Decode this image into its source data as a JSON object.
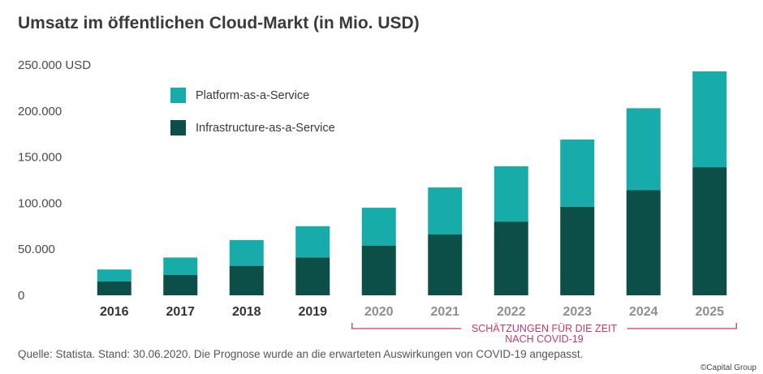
{
  "chart_data": {
    "type": "bar",
    "stacked": true,
    "title": "Umsatz im öffentlichen Cloud-Markt (in Mio. USD)",
    "ylim": [
      0,
      250000
    ],
    "y_ticks": [
      0,
      50000,
      100000,
      150000,
      200000,
      250000
    ],
    "y_tick_labels": [
      "0",
      "50.000",
      "100.000",
      "150.000",
      "200.000",
      "250.000 USD"
    ],
    "categories": [
      "2016",
      "2017",
      "2018",
      "2019",
      "2020",
      "2021",
      "2022",
      "2023",
      "2024",
      "2025"
    ],
    "series": [
      {
        "name": "Infrastructure-as-a-Service",
        "color": "#0b4f48",
        "values": [
          15000,
          22000,
          32000,
          41000,
          54000,
          66000,
          80000,
          96000,
          114000,
          139000
        ]
      },
      {
        "name": "Platform-as-a-Service",
        "color": "#17aba9",
        "values": [
          13000,
          19000,
          28000,
          34000,
          41000,
          51000,
          60000,
          73000,
          89000,
          104000
        ]
      }
    ],
    "legend_position": "top-left",
    "grid": false,
    "x_label_colors": {
      "actual": "#333333",
      "estimate": "#8f8f8f"
    },
    "estimate_start_index": 4,
    "annotation": [
      "SCHÄTZUNGEN FÜR DIE ZEIT",
      "NACH COVID-19"
    ],
    "annotation_color": "#c23a6e"
  },
  "source": "Quelle: Statista. Stand: 30.06.2020. Die Prognose wurde an die erwarteten Auswirkungen von COVID-19 angepasst.",
  "copyright": "©Capital Group"
}
